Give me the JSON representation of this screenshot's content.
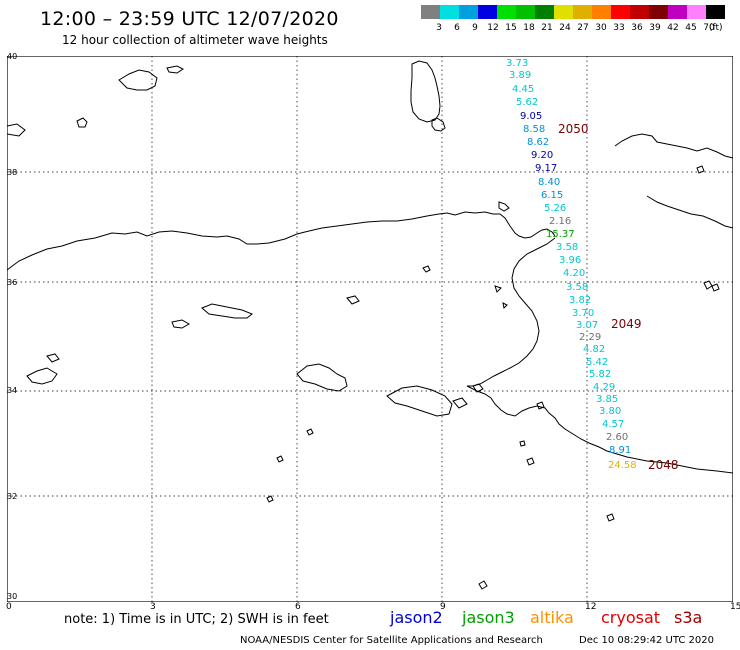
{
  "title": "12:00 – 23:59 UTC 12/07/2020",
  "subtitle": "12 hour collection of altimeter wave heights",
  "scale": {
    "colors": [
      "#808080",
      "#00e0e0",
      "#00a0e0",
      "#0000e0",
      "#00e000",
      "#00c000",
      "#008000",
      "#e0e000",
      "#e0b000",
      "#ff8000",
      "#ff0000",
      "#c00000",
      "#800000",
      "#c000c0",
      "#ff80ff",
      "#000000"
    ],
    "labels": [
      "3",
      "6",
      "9",
      "12",
      "15",
      "18",
      "21",
      "24",
      "27",
      "30",
      "33",
      "36",
      "39",
      "42",
      "45",
      "70"
    ],
    "unit": "(ft)"
  },
  "axes": {
    "lat_labels": [
      "40",
      "38",
      "36",
      "34",
      "32",
      "30"
    ],
    "lon_labels": [
      "0",
      "3",
      "6",
      "9",
      "12",
      "15"
    ]
  },
  "observations": [
    {
      "v": "3.73",
      "c": "#00c8d0"
    },
    {
      "v": "3.89",
      "c": "#00c8d0"
    },
    {
      "v": "4.45",
      "c": "#00c8d0"
    },
    {
      "v": "5.62",
      "c": "#00c8d0"
    },
    {
      "v": "9.05",
      "c": "#0000a0"
    },
    {
      "v": "8.58",
      "c": "#0090d8"
    },
    {
      "v": "8.62",
      "c": "#0090d8"
    },
    {
      "v": "9.20",
      "c": "#0000a0"
    },
    {
      "v": "9.17",
      "c": "#0000a0"
    },
    {
      "v": "8.40",
      "c": "#0090d8"
    },
    {
      "v": "6.15",
      "c": "#0090d8"
    },
    {
      "v": "5.26",
      "c": "#00c8d0"
    },
    {
      "v": "2.16",
      "c": "#707070"
    },
    {
      "v": "15.37",
      "c": "#00a000"
    },
    {
      "v": "3.58",
      "c": "#00c8d0"
    },
    {
      "v": "3.96",
      "c": "#00c8d0"
    },
    {
      "v": "4.20",
      "c": "#00c8d0"
    },
    {
      "v": "3.58",
      "c": "#00c8d0"
    },
    {
      "v": "3.82",
      "c": "#00c8d0"
    },
    {
      "v": "3.70",
      "c": "#00c8d0"
    },
    {
      "v": "3.07",
      "c": "#00c8d0"
    },
    {
      "v": "2.29",
      "c": "#707070"
    },
    {
      "v": "4.82",
      "c": "#00c8d0"
    },
    {
      "v": "5.42",
      "c": "#00c8d0"
    },
    {
      "v": "5.82",
      "c": "#00c8d0"
    },
    {
      "v": "4.29",
      "c": "#00c8d0"
    },
    {
      "v": "3.85",
      "c": "#00c8d0"
    },
    {
      "v": "3.80",
      "c": "#00c8d0"
    },
    {
      "v": "4.57",
      "c": "#00c8d0"
    },
    {
      "v": "2.60",
      "c": "#707070"
    },
    {
      "v": "8.91",
      "c": "#0090d8"
    },
    {
      "v": "24.58",
      "c": "#e0b000"
    }
  ],
  "passes": [
    "2050",
    "2049",
    "2048"
  ],
  "note": "note:  1) Time is in UTC;  2) SWH is in feet",
  "satellites": [
    {
      "name": "jason2",
      "color": "#0000d0"
    },
    {
      "name": "jason3",
      "color": "#00a000"
    },
    {
      "name": "altika",
      "color": "#ff9000"
    },
    {
      "name": "cryosat",
      "color": "#e00000"
    },
    {
      "name": "s3a",
      "color": "#a00000"
    }
  ],
  "footer": "NOAA/NESDIS Center for Satellite Applications and Research",
  "footer_date": "Dec 10 08:29:42 UTC 2020"
}
